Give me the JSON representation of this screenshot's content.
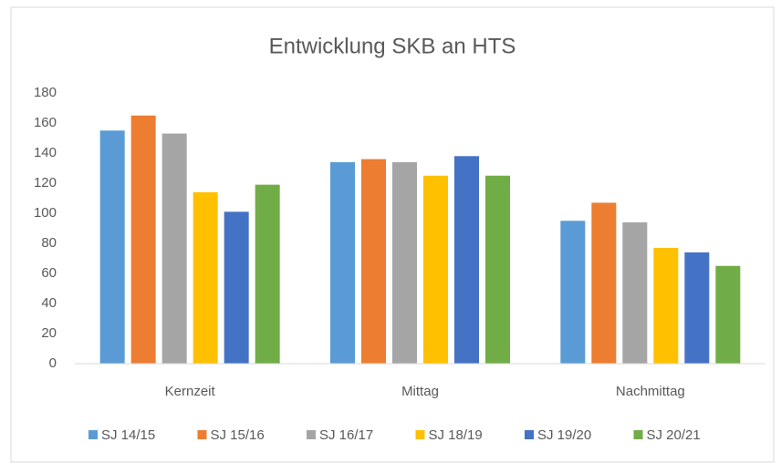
{
  "chart_data": {
    "type": "bar",
    "title": "Entwicklung SKB an HTS",
    "categories": [
      "Kernzeit",
      "Mittag",
      "Nachmittag"
    ],
    "series": [
      {
        "name": "SJ 14/15",
        "color": "#5b9bd5",
        "values": [
          155,
          134,
          95
        ]
      },
      {
        "name": "SJ 15/16",
        "color": "#ed7d31",
        "values": [
          165,
          136,
          107
        ]
      },
      {
        "name": "SJ 16/17",
        "color": "#a5a5a5",
        "values": [
          153,
          134,
          94
        ]
      },
      {
        "name": "SJ 18/19",
        "color": "#ffc000",
        "values": [
          114,
          125,
          77
        ]
      },
      {
        "name": "SJ 19/20",
        "color": "#4472c4",
        "values": [
          101,
          138,
          74
        ]
      },
      {
        "name": "SJ 20/21",
        "color": "#70ad47",
        "values": [
          119,
          125,
          65
        ]
      }
    ],
    "ylim": [
      0,
      180
    ],
    "yticks": [
      0,
      20,
      40,
      60,
      80,
      100,
      120,
      140,
      160,
      180
    ],
    "grid": false,
    "legend": "bottom"
  }
}
